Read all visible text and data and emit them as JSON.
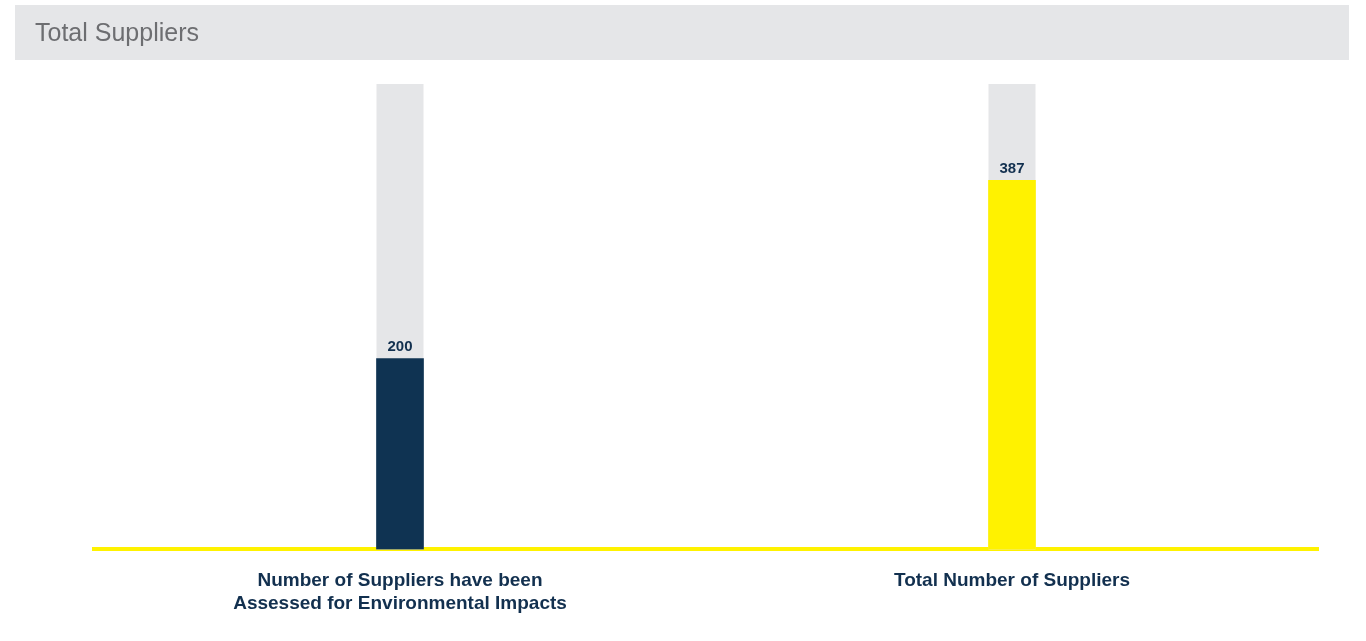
{
  "chart_data": {
    "type": "bar",
    "title": "Total Suppliers",
    "categories": [
      "Number of Suppliers have been Assessed for Environmental Impacts",
      "Total Number of Suppliers"
    ],
    "values": [
      200,
      387
    ],
    "colors": [
      "#0f3352",
      "#fff200"
    ],
    "ylim": [
      0,
      488
    ],
    "data_labels": true,
    "grid": false,
    "legend": false
  }
}
